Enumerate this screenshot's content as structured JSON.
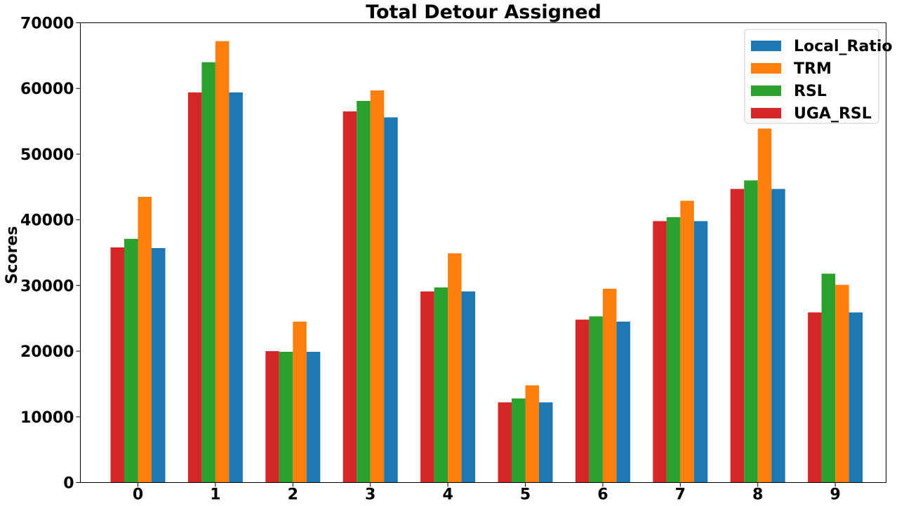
{
  "chart_data": {
    "type": "bar",
    "title": "Total Detour Assigned",
    "xlabel": "",
    "ylabel": "Scores",
    "categories": [
      "0",
      "1",
      "2",
      "3",
      "4",
      "5",
      "6",
      "7",
      "8",
      "9"
    ],
    "ylim": [
      0,
      70000
    ],
    "yticks": [
      0,
      10000,
      20000,
      30000,
      40000,
      50000,
      60000,
      70000
    ],
    "ytick_labels": [
      "0",
      "10000",
      "20000",
      "30000",
      "40000",
      "50000",
      "60000",
      "70000"
    ],
    "legend_position": "top-right",
    "grid": false,
    "series": [
      {
        "name": "UGA_RSL",
        "color": "#d62728",
        "values": [
          35800,
          59400,
          20000,
          56500,
          29100,
          12200,
          24800,
          39800,
          44700,
          25900
        ]
      },
      {
        "name": "RSL",
        "color": "#2ca02c",
        "values": [
          37100,
          64000,
          19900,
          58100,
          29700,
          12800,
          25300,
          40400,
          46000,
          31800
        ]
      },
      {
        "name": "TRM",
        "color": "#ff7f0e",
        "values": [
          43500,
          67200,
          24500,
          59700,
          34900,
          14800,
          29500,
          42900,
          53900,
          30100
        ]
      },
      {
        "name": "Local_Ratio",
        "color": "#1f77b4",
        "values": [
          35700,
          59400,
          19900,
          55600,
          29100,
          12200,
          24500,
          39800,
          44700,
          25900
        ]
      }
    ],
    "legend_order": [
      "Local_Ratio",
      "TRM",
      "RSL",
      "UGA_RSL"
    ]
  }
}
